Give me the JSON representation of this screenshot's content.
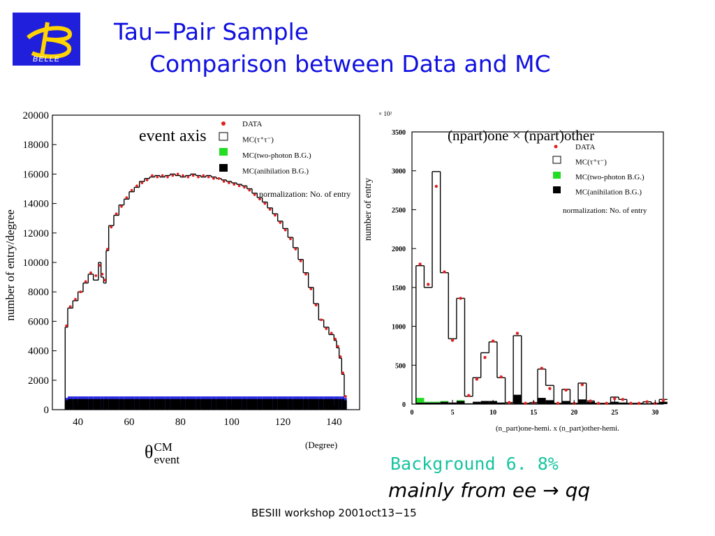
{
  "logo": {
    "text": "BELLE"
  },
  "header": {
    "title_line1": "Tau−Pair Sample",
    "title_line2": "Comparison between Data and MC"
  },
  "left_panel": {
    "label_event_axis": "event axis",
    "xlabel_main": "θ",
    "xlabel_sup": "CM",
    "xlabel_sub": "event",
    "xunit": "(Degree)",
    "ylabel": "number of entry/degree",
    "legend": [
      "DATA",
      "MC(τ⁺τ⁻)",
      "MC(two-photon B.G.)",
      "MC(anihilation B.G.)"
    ],
    "normalization": "normalization: No. of entry",
    "colors": {
      "data": "#e02020",
      "two_photon": "#22dd22",
      "anihilation": "#000000",
      "bg_band": "#2a2ae0"
    }
  },
  "right_panel": {
    "label_npart": "(npart)one × (npart)other",
    "scale": "× 10²",
    "ylabel": "number of entry",
    "xlabel": "(n_part)one-hemi. x (n_part)other-hemi.",
    "legend": [
      "DATA",
      "MC(τ⁺τ⁻)",
      "MC(two-photon B.G.)",
      "MC(anihilation B.G.)"
    ],
    "normalization": "normalization: No. of entry"
  },
  "background_line": "Background 6. 8%",
  "mainly_from": "mainly from ee → qq",
  "footer": "BESIII workshop 2001oct13−15",
  "chart_data": [
    {
      "type": "bar",
      "title": "",
      "xlabel": "θ CM event (Degree)",
      "ylabel": "number of entry/degree",
      "xlim": [
        30,
        150
      ],
      "ylim": [
        0,
        20000
      ],
      "xticks": [
        40,
        60,
        80,
        100,
        120,
        140
      ],
      "yticks": [
        0,
        2000,
        4000,
        6000,
        8000,
        10000,
        12000,
        14000,
        16000,
        18000,
        20000
      ],
      "x": [
        35,
        36,
        38,
        40,
        42,
        44,
        46,
        48,
        49,
        50,
        51,
        52,
        54,
        56,
        58,
        60,
        62,
        64,
        66,
        68,
        70,
        72,
        74,
        76,
        78,
        80,
        82,
        84,
        86,
        88,
        90,
        92,
        94,
        96,
        98,
        100,
        102,
        104,
        106,
        108,
        110,
        112,
        114,
        116,
        118,
        120,
        122,
        124,
        126,
        128,
        130,
        132,
        134,
        136,
        138,
        140,
        141,
        142,
        143,
        144
      ],
      "series": [
        {
          "name": "MC(τ⁺τ⁻)",
          "values": [
            5600,
            6900,
            7400,
            8000,
            8600,
            9200,
            8800,
            10000,
            9000,
            8600,
            10800,
            12500,
            13200,
            13900,
            14300,
            14800,
            15100,
            15500,
            15700,
            15800,
            15900,
            15800,
            15900,
            16000,
            15900,
            15800,
            15900,
            16000,
            15900,
            15800,
            15900,
            15800,
            15700,
            15600,
            15500,
            15400,
            15300,
            15200,
            15000,
            14700,
            14400,
            14100,
            13700,
            13300,
            12800,
            12300,
            11700,
            11000,
            10200,
            9300,
            8300,
            7200,
            6100,
            5600,
            5100,
            4700,
            4200,
            3500,
            2400,
            900
          ]
        },
        {
          "name": "DATA",
          "values": [
            5700,
            7000,
            7500,
            8000,
            8700,
            9300,
            9100,
            9800,
            9200,
            8800,
            10900,
            12400,
            13300,
            13800,
            14400,
            14900,
            15200,
            15400,
            15600,
            15900,
            15800,
            15900,
            15800,
            15900,
            16000,
            15900,
            15800,
            15900,
            15800,
            15900,
            15800,
            15700,
            15700,
            15500,
            15400,
            15300,
            15200,
            15100,
            14900,
            14600,
            14300,
            14000,
            13600,
            13200,
            12700,
            12200,
            11600,
            10900,
            10100,
            9200,
            8200,
            7100,
            6100,
            5500,
            5200,
            4800,
            4300,
            3600,
            2500,
            900
          ]
        },
        {
          "name": "MC(anihilation B.G.)",
          "values": [
            800,
            900,
            900,
            900,
            900,
            900,
            900,
            900,
            900,
            900,
            900,
            900,
            900,
            900,
            900,
            900,
            900,
            900,
            900,
            900,
            900,
            900,
            900,
            900,
            900,
            900,
            900,
            900,
            900,
            900,
            900,
            900,
            900,
            900,
            900,
            900,
            900,
            900,
            900,
            900,
            900,
            900,
            900,
            900,
            900,
            900,
            900,
            900,
            900,
            900,
            900,
            900,
            900,
            900,
            900,
            900,
            900,
            900,
            900,
            800
          ]
        }
      ]
    },
    {
      "type": "bar",
      "title": "",
      "xlabel": "(n_part)one-hemi. x (n_part)other-hemi.",
      "ylabel": "number of entry (× 10²)",
      "xlim": [
        0,
        31
      ],
      "ylim": [
        0,
        3500
      ],
      "xticks": [
        0,
        5,
        10,
        15,
        20,
        25,
        30
      ],
      "yticks": [
        0,
        500,
        1000,
        1500,
        2000,
        2500,
        3000,
        3500
      ],
      "categories": [
        1,
        2,
        3,
        4,
        5,
        6,
        7,
        8,
        9,
        10,
        11,
        12,
        13,
        14,
        15,
        16,
        17,
        18,
        19,
        20,
        21,
        22,
        23,
        24,
        25,
        26,
        27,
        28,
        29,
        30,
        31
      ],
      "series": [
        {
          "name": "MC(τ⁺τ⁻)",
          "values": [
            1780,
            1500,
            2990,
            1690,
            840,
            1360,
            100,
            340,
            660,
            800,
            340,
            20,
            880,
            10,
            20,
            450,
            240,
            10,
            190,
            10,
            270,
            40,
            10,
            10,
            90,
            60,
            10,
            10,
            30,
            10,
            60
          ]
        },
        {
          "name": "DATA",
          "values": [
            1800,
            1540,
            2800,
            1700,
            820,
            1360,
            110,
            320,
            600,
            810,
            350,
            20,
            910,
            10,
            20,
            460,
            200,
            10,
            180,
            10,
            250,
            40,
            10,
            10,
            70,
            60,
            10,
            10,
            30,
            10,
            50
          ]
        },
        {
          "name": "MC(two-photon B.G.)",
          "values": [
            60,
            10,
            10,
            10,
            0,
            10,
            0,
            0,
            0,
            0,
            0,
            0,
            0,
            0,
            0,
            0,
            0,
            0,
            0,
            0,
            0,
            0,
            0,
            0,
            0,
            0,
            0,
            0,
            0,
            0,
            0
          ]
        },
        {
          "name": "MC(anihilation B.G.)",
          "values": [
            20,
            20,
            20,
            30,
            20,
            40,
            10,
            30,
            40,
            40,
            20,
            10,
            120,
            10,
            10,
            80,
            50,
            10,
            40,
            10,
            60,
            30,
            10,
            10,
            30,
            20,
            10,
            10,
            10,
            10,
            30
          ]
        }
      ]
    }
  ]
}
